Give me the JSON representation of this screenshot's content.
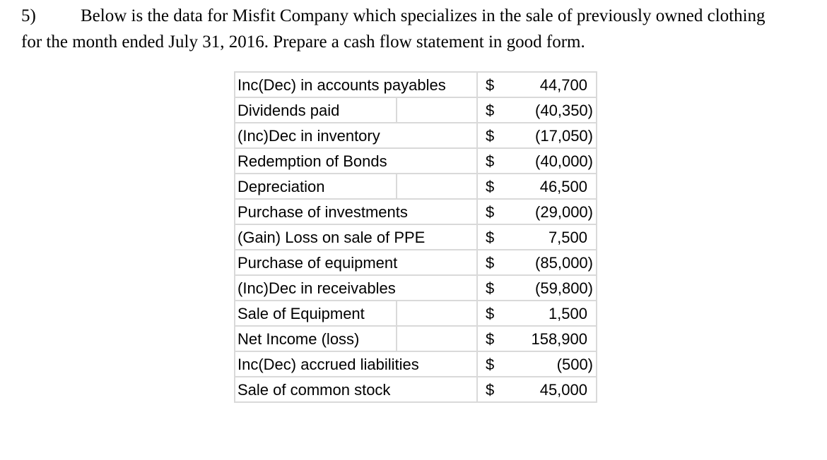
{
  "question": {
    "number": "5)",
    "line1": "Below is the data for Misfit Company which specializes in the sale of previously owned clothing",
    "line2": "for the month ended July 31, 2016.  Prepare a cash flow statement in good form."
  },
  "table": {
    "currency_symbol": "$",
    "rows": [
      {
        "label": "Inc(Dec) in accounts payables",
        "currency": "$",
        "amount": "44,700",
        "value": 44700,
        "split": false
      },
      {
        "label": "Dividends paid",
        "currency": "$",
        "amount": "(40,350)",
        "value": -40350,
        "split": true
      },
      {
        "label": "(Inc)Dec in inventory",
        "currency": "$",
        "amount": "(17,050)",
        "value": -17050,
        "split": false
      },
      {
        "label": "Redemption of Bonds",
        "currency": "$",
        "amount": "(40,000)",
        "value": -40000,
        "split": false
      },
      {
        "label": "Depreciation",
        "currency": "$",
        "amount": "46,500",
        "value": 46500,
        "split": true
      },
      {
        "label": "Purchase of investments",
        "currency": "$",
        "amount": "(29,000)",
        "value": -29000,
        "split": false
      },
      {
        "label": "(Gain) Loss on sale of PPE",
        "currency": "$",
        "amount": "7,500",
        "value": 7500,
        "split": false
      },
      {
        "label": "Purchase of equipment",
        "currency": "$",
        "amount": "(85,000)",
        "value": -85000,
        "split": false
      },
      {
        "label": "(Inc)Dec in receivables",
        "currency": "$",
        "amount": "(59,800)",
        "value": -59800,
        "split": false
      },
      {
        "label": "Sale of Equipment",
        "currency": "$",
        "amount": "1,500",
        "value": 1500,
        "split": true
      },
      {
        "label": "Net Income (loss)",
        "currency": "$",
        "amount": "158,900",
        "value": 158900,
        "split": true
      },
      {
        "label": "Inc(Dec) accrued liabilities",
        "currency": "$",
        "amount": "(500)",
        "value": -500,
        "split": false
      },
      {
        "label": "Sale of common stock",
        "currency": "$",
        "amount": "45,000",
        "value": 45000,
        "split": false
      }
    ]
  }
}
